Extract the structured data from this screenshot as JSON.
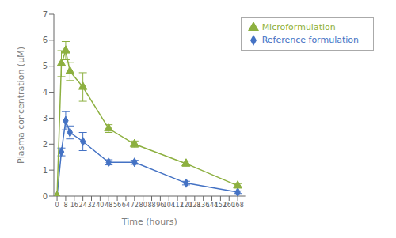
{
  "chart_data": {
    "type": "line",
    "x": [
      0,
      4,
      8,
      12,
      24,
      48,
      72,
      120,
      168
    ],
    "series": [
      {
        "name": "Reference formulation",
        "color": "#4472C4",
        "marker": "diamond",
        "values": [
          0,
          1.7,
          2.9,
          2.45,
          2.1,
          1.3,
          1.3,
          0.5,
          0.15
        ],
        "yerr": [
          0,
          0.15,
          0.35,
          0.25,
          0.35,
          0.1,
          0.08,
          0.07,
          0.05
        ]
      },
      {
        "name": "Microformulation",
        "color": "#8DB040",
        "marker": "triangle",
        "values": [
          0,
          5.1,
          5.6,
          4.8,
          4.2,
          2.6,
          2.0,
          1.25,
          0.4
        ],
        "yerr": [
          0,
          0.5,
          0.35,
          0.35,
          0.55,
          0.15,
          0.12,
          0.1,
          0.08
        ]
      }
    ],
    "x_label": "Time (hours)",
    "y_label": "Plasma concentration (μM)",
    "xlim": [
      -3,
      175
    ],
    "ylim": [
      0,
      7
    ],
    "xticks": [
      0,
      8,
      16,
      24,
      32,
      40,
      48,
      56,
      64,
      72,
      80,
      88,
      96,
      104,
      112,
      120,
      128,
      136,
      144,
      152,
      160,
      168
    ],
    "yticks": [
      0,
      1,
      2,
      3,
      4,
      5,
      6,
      7
    ],
    "grid": false,
    "legend": "upper right"
  }
}
